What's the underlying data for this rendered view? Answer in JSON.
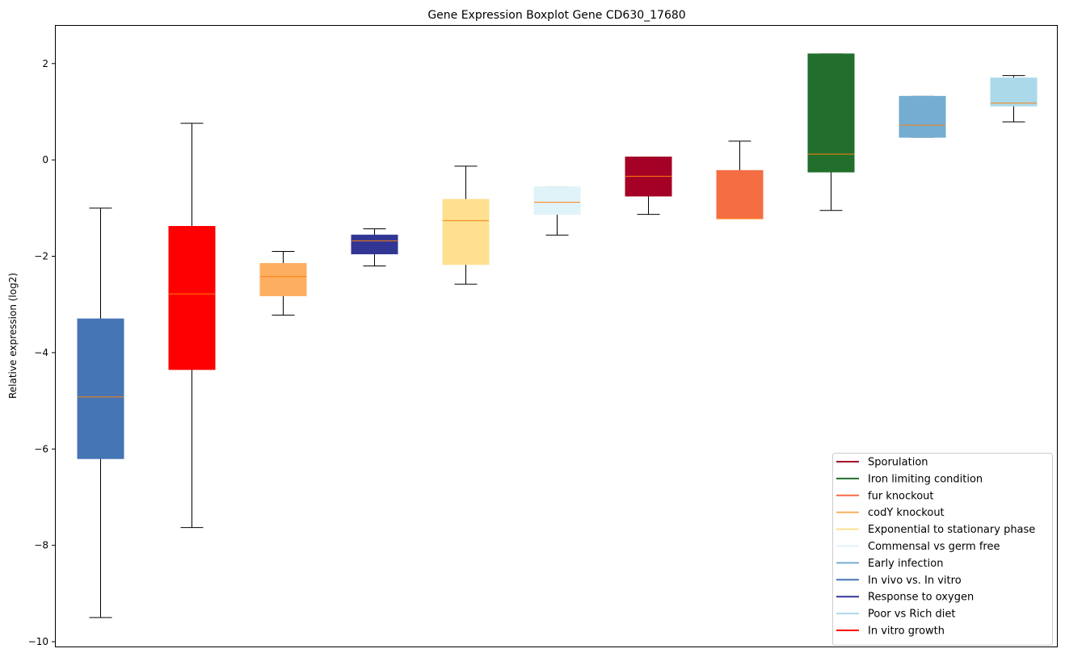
{
  "chart_data": {
    "type": "boxplot",
    "title": "Gene Expression Boxplot Gene CD630_17680",
    "xlabel": "",
    "ylabel": "Relative expression (log2)",
    "ylim": [
      -10.1,
      2.8
    ],
    "yticks": [
      2,
      0,
      -2,
      -4,
      -6,
      -8,
      -10
    ],
    "ytick_labels": [
      "2",
      "0",
      "−2",
      "−4",
      "−6",
      "−8",
      "−10"
    ],
    "grid": false,
    "legend_position": "lower-right",
    "boxes": [
      {
        "name": "In vivo vs. In vitro",
        "color": "#4575b4",
        "whisker_low": -9.5,
        "q1": -6.2,
        "median": -4.92,
        "q3": -3.3,
        "whisker_high": -1.0
      },
      {
        "name": "In vitro growth",
        "color": "#ff0000",
        "whisker_low": -7.63,
        "q1": -4.35,
        "median": -2.78,
        "q3": -1.38,
        "whisker_high": 0.76
      },
      {
        "name": "codY knockout",
        "color": "#fdae61",
        "whisker_low": -3.22,
        "q1": -2.82,
        "median": -2.42,
        "q3": -2.15,
        "whisker_high": -1.9
      },
      {
        "name": "Response to oxygen",
        "color": "#313695",
        "whisker_low": -2.2,
        "q1": -1.95,
        "median": -1.68,
        "q3": -1.56,
        "whisker_high": -1.43
      },
      {
        "name": "Exponential to stationary phase",
        "color": "#fee090",
        "whisker_low": -2.58,
        "q1": -2.17,
        "median": -1.26,
        "q3": -0.82,
        "whisker_high": -0.13
      },
      {
        "name": "Commensal vs germ free",
        "color": "#e0f3f8",
        "whisker_low": -1.56,
        "q1": -1.13,
        "median": -0.88,
        "q3": -0.56,
        "whisker_high": -0.56
      },
      {
        "name": "Sporulation",
        "color": "#a50026",
        "whisker_low": -1.13,
        "q1": -0.75,
        "median": -0.34,
        "q3": 0.06,
        "whisker_high": 0.06
      },
      {
        "name": "fur knockout",
        "color": "#f46d43",
        "whisker_low": -1.22,
        "q1": -1.22,
        "median": -1.22,
        "q3": -0.22,
        "whisker_high": 0.39
      },
      {
        "name": "Iron limiting condition",
        "color": "#226e2d",
        "whisker_low": -1.05,
        "q1": -0.25,
        "median": 0.12,
        "q3": 2.2,
        "whisker_high": 2.2
      },
      {
        "name": "Early infection",
        "color": "#74add1",
        "whisker_low": 0.47,
        "q1": 0.47,
        "median": 0.72,
        "q3": 1.32,
        "whisker_high": 1.32
      },
      {
        "name": "Poor vs Rich diet",
        "color": "#abd9e9",
        "whisker_low": 0.79,
        "q1": 1.12,
        "median": 1.18,
        "q3": 1.7,
        "whisker_high": 1.75
      }
    ],
    "median_color": "#ff7f0e",
    "legend": [
      {
        "label": "Sporulation",
        "color": "#a50026"
      },
      {
        "label": "Iron limiting condition",
        "color": "#226e2d"
      },
      {
        "label": "fur knockout",
        "color": "#f46d43"
      },
      {
        "label": "codY knockout",
        "color": "#fdae61"
      },
      {
        "label": "Exponential to stationary phase",
        "color": "#fee090"
      },
      {
        "label": "Commensal vs germ free",
        "color": "#e0f3f8"
      },
      {
        "label": "Early infection",
        "color": "#74add1"
      },
      {
        "label": "In vivo vs. In vitro",
        "color": "#4575b4"
      },
      {
        "label": "Response to oxygen",
        "color": "#313695"
      },
      {
        "label": "Poor vs Rich diet",
        "color": "#abd9e9"
      },
      {
        "label": "In vitro growth",
        "color": "#ff0000"
      }
    ]
  }
}
